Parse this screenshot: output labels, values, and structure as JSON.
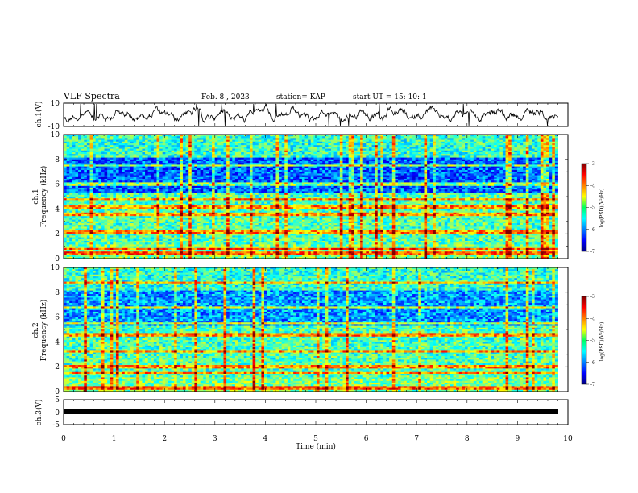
{
  "header": {
    "title": "VLF Spectra",
    "date": "Feb. 8 , 2023",
    "station": "station= KAP",
    "start": "start UT = 15: 10: 1"
  },
  "chart_data": [
    {
      "type": "line",
      "name": "waveform-ch1",
      "ylabel": "ch.1(V)",
      "ylim": [
        -10,
        10
      ],
      "yticks": [
        "10",
        "-10"
      ],
      "xlim": [
        0,
        10
      ]
    },
    {
      "type": "heatmap",
      "name": "spectrogram-ch1",
      "ylabel": "ch.1\nFrequency (kHz)",
      "ylabel_lines": [
        "ch.1",
        "Frequency (kHz)"
      ],
      "ylim": [
        0,
        10
      ],
      "yticks": [
        "0",
        "2",
        "4",
        "6",
        "8",
        "10"
      ],
      "xlim": [
        0,
        10
      ],
      "data_end_min": 9.8,
      "colorbar": {
        "label": "log(PSD)(V²/Hz)",
        "range": [
          -7,
          -3
        ],
        "ticks": [
          "-3",
          "-4",
          "-5",
          "-6",
          "-7"
        ]
      }
    },
    {
      "type": "heatmap",
      "name": "spectrogram-ch2",
      "ylabel_lines": [
        "ch.2",
        "Frequency (kHz)"
      ],
      "ylim": [
        0,
        10
      ],
      "yticks": [
        "0",
        "2",
        "4",
        "6",
        "8",
        "10"
      ],
      "xlim": [
        0,
        10
      ],
      "data_end_min": 9.8,
      "colorbar": {
        "label": "log(PSD)(V²/Hz)",
        "range": [
          -7,
          -3
        ],
        "ticks": [
          "-3",
          "-4",
          "-5",
          "-6",
          "-7"
        ]
      }
    },
    {
      "type": "line",
      "name": "waveform-ch3",
      "ylabel": "ch.3(V)",
      "ylim": [
        -5,
        5
      ],
      "yticks": [
        "5",
        "0",
        "-5"
      ],
      "xlim": [
        0,
        10
      ],
      "xlabel": "Time (min)",
      "xticks": [
        "0",
        "1",
        "2",
        "3",
        "4",
        "5",
        "6",
        "7",
        "8",
        "9",
        "10"
      ]
    }
  ]
}
